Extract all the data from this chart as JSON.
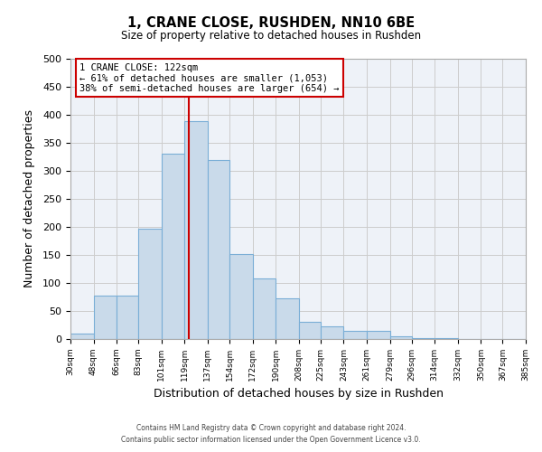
{
  "title": "1, CRANE CLOSE, RUSHDEN, NN10 6BE",
  "subtitle": "Size of property relative to detached houses in Rushden",
  "xlabel": "Distribution of detached houses by size in Rushden",
  "ylabel": "Number of detached properties",
  "bar_edges": [
    30,
    48,
    66,
    83,
    101,
    119,
    137,
    154,
    172,
    190,
    208,
    225,
    243,
    261,
    279,
    296,
    314,
    332,
    350,
    367,
    385
  ],
  "bar_heights": [
    10,
    78,
    78,
    197,
    330,
    388,
    320,
    152,
    108,
    73,
    30,
    22,
    15,
    15,
    5,
    2,
    1,
    0,
    0,
    0
  ],
  "bar_facecolor": "#c9daea",
  "bar_edgecolor": "#7aaed6",
  "vline_x": 122,
  "vline_color": "#cc0000",
  "ylim": [
    0,
    500
  ],
  "yticks": [
    0,
    50,
    100,
    150,
    200,
    250,
    300,
    350,
    400,
    450,
    500
  ],
  "grid_color": "#cccccc",
  "bg_color": "#eef2f8",
  "annotation_title": "1 CRANE CLOSE: 122sqm",
  "annotation_line1": "← 61% of detached houses are smaller (1,053)",
  "annotation_line2": "38% of semi-detached houses are larger (654) →",
  "annotation_box_color": "#cc0000",
  "footer_line1": "Contains HM Land Registry data © Crown copyright and database right 2024.",
  "footer_line2": "Contains public sector information licensed under the Open Government Licence v3.0."
}
